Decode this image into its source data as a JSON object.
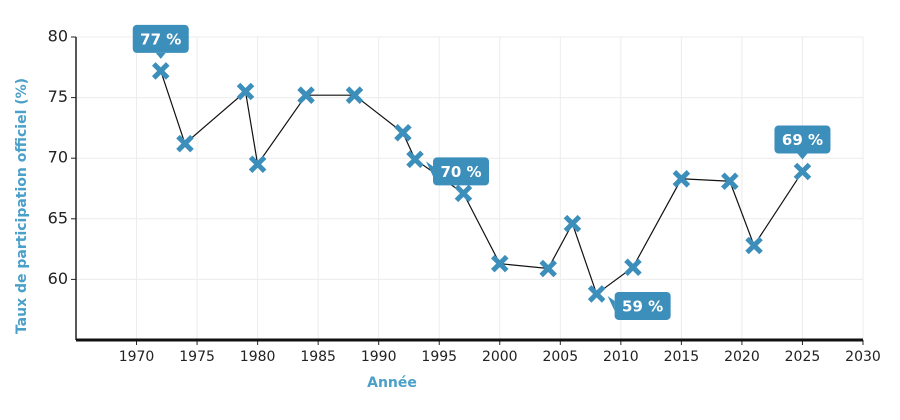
{
  "chart_data": {
    "type": "line",
    "x_label": "Année",
    "y_label": "Taux de participation officiel (%)",
    "xlim": [
      1965,
      2030
    ],
    "xticks": [
      1970,
      1975,
      1980,
      1985,
      1990,
      1995,
      2000,
      2005,
      2010,
      2015,
      2020,
      2025,
      2030
    ],
    "ylim": [
      55,
      80
    ],
    "yticks": [
      60,
      65,
      70,
      75,
      80
    ],
    "grid": true,
    "x": [
      1972,
      1974,
      1979,
      1980,
      1984,
      1988,
      1992,
      1993,
      1997,
      2000,
      2004,
      2006,
      2008,
      2011,
      2015,
      2019,
      2021,
      2025
    ],
    "series": [
      {
        "color": "#3d8fbb",
        "line_color": "#111111",
        "values": [
          77.2,
          71.2,
          75.5,
          69.5,
          75.2,
          75.2,
          72.1,
          69.9,
          67.1,
          61.3,
          60.9,
          64.6,
          58.8,
          61.0,
          68.3,
          68.1,
          62.8,
          68.9
        ],
        "value_labels": [
          "77 %",
          null,
          null,
          null,
          null,
          null,
          null,
          "70 %",
          null,
          null,
          null,
          null,
          "59 %",
          null,
          null,
          null,
          null,
          "69 %"
        ]
      }
    ]
  }
}
